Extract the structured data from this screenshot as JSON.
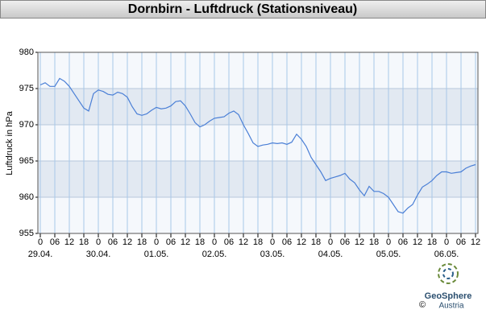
{
  "chart_data": {
    "type": "line",
    "title": "Dornbirn - Luftdruck (Stationsniveau)",
    "y_label": "Luftdruck in hPa",
    "x": [
      "29.04. 00",
      "29.04. 02",
      "29.04. 04",
      "29.04. 06",
      "29.04. 08",
      "29.04. 10",
      "29.04. 12",
      "29.04. 14",
      "29.04. 16",
      "29.04. 18",
      "29.04. 20",
      "29.04. 22",
      "30.04. 00",
      "30.04. 02",
      "30.04. 04",
      "30.04. 06",
      "30.04. 08",
      "30.04. 10",
      "30.04. 12",
      "30.04. 14",
      "30.04. 16",
      "30.04. 18",
      "30.04. 20",
      "30.04. 22",
      "01.05. 00",
      "01.05. 02",
      "01.05. 04",
      "01.05. 06",
      "01.05. 08",
      "01.05. 10",
      "01.05. 12",
      "01.05. 14",
      "01.05. 16",
      "01.05. 18",
      "01.05. 20",
      "01.05. 22",
      "02.05. 00",
      "02.05. 02",
      "02.05. 04",
      "02.05. 06",
      "02.05. 08",
      "02.05. 10",
      "02.05. 12",
      "02.05. 14",
      "02.05. 16",
      "02.05. 18",
      "02.05. 20",
      "02.05. 22",
      "03.05. 00",
      "03.05. 02",
      "03.05. 04",
      "03.05. 06",
      "03.05. 08",
      "03.05. 10",
      "03.05. 12",
      "03.05. 14",
      "03.05. 16",
      "03.05. 18",
      "03.05. 20",
      "03.05. 22",
      "04.05. 00",
      "04.05. 02",
      "04.05. 04",
      "04.05. 06",
      "04.05. 08",
      "04.05. 10",
      "04.05. 12",
      "04.05. 14",
      "04.05. 16",
      "04.05. 18",
      "04.05. 20",
      "04.05. 22",
      "05.05. 00",
      "05.05. 02",
      "05.05. 04",
      "05.05. 06",
      "05.05. 08",
      "05.05. 10",
      "05.05. 12",
      "05.05. 14",
      "05.05. 16",
      "05.05. 18",
      "05.05. 20",
      "05.05. 22",
      "06.05. 00",
      "06.05. 02",
      "06.05. 04",
      "06.05. 06",
      "06.05. 08",
      "06.05. 10",
      "06.05. 12"
    ],
    "series": [
      {
        "name": "Luftdruck",
        "color": "#4a7fd6",
        "values": [
          975.5,
          975.8,
          975.3,
          975.3,
          976.4,
          976.0,
          975.3,
          974.3,
          973.3,
          972.3,
          971.9,
          974.3,
          974.8,
          974.6,
          974.2,
          974.1,
          974.5,
          974.3,
          973.8,
          972.5,
          971.5,
          971.3,
          971.5,
          972.0,
          972.4,
          972.2,
          972.3,
          972.6,
          973.2,
          973.3,
          972.6,
          971.5,
          970.3,
          969.7,
          970.0,
          970.5,
          970.9,
          971.0,
          971.1,
          971.6,
          971.9,
          971.4,
          970.0,
          968.8,
          967.5,
          967.0,
          967.2,
          967.3,
          967.5,
          967.4,
          967.5,
          967.3,
          967.6,
          968.7,
          968.0,
          967.0,
          965.5,
          964.5,
          963.5,
          962.3,
          962.6,
          962.8,
          963.0,
          963.3,
          962.5,
          962.0,
          961.0,
          960.2,
          961.5,
          960.8,
          960.8,
          960.5,
          960.0,
          959.0,
          958.0,
          957.8,
          958.5,
          959.0,
          960.3,
          961.4,
          961.8,
          962.3,
          963.0,
          963.5,
          963.5,
          963.3,
          963.4,
          963.5,
          964.0,
          964.3,
          964.5
        ]
      }
    ],
    "xticks": [
      {
        "value": "29.04. 00",
        "label": "0"
      },
      {
        "value": "29.04. 06",
        "label": "06"
      },
      {
        "value": "29.04. 12",
        "label": "12"
      },
      {
        "value": "29.04. 18",
        "label": "18"
      },
      {
        "value": "30.04. 00",
        "label": "0"
      },
      {
        "value": "30.04. 06",
        "label": "06"
      },
      {
        "value": "30.04. 12",
        "label": "12"
      },
      {
        "value": "30.04. 18",
        "label": "18"
      },
      {
        "value": "01.05. 00",
        "label": "0"
      },
      {
        "value": "01.05. 06",
        "label": "06"
      },
      {
        "value": "01.05. 12",
        "label": "12"
      },
      {
        "value": "01.05. 18",
        "label": "18"
      },
      {
        "value": "02.05. 00",
        "label": "0"
      },
      {
        "value": "02.05. 06",
        "label": "06"
      },
      {
        "value": "02.05. 12",
        "label": "12"
      },
      {
        "value": "02.05. 18",
        "label": "18"
      },
      {
        "value": "03.05. 00",
        "label": "0"
      },
      {
        "value": "03.05. 06",
        "label": "06"
      },
      {
        "value": "03.05. 12",
        "label": "12"
      },
      {
        "value": "03.05. 18",
        "label": "18"
      },
      {
        "value": "04.05. 00",
        "label": "0"
      },
      {
        "value": "04.05. 06",
        "label": "06"
      },
      {
        "value": "04.05. 12",
        "label": "12"
      },
      {
        "value": "04.05. 18",
        "label": "18"
      },
      {
        "value": "05.05. 00",
        "label": "0"
      },
      {
        "value": "05.05. 06",
        "label": "06"
      },
      {
        "value": "05.05. 12",
        "label": "12"
      },
      {
        "value": "05.05. 18",
        "label": "18"
      },
      {
        "value": "06.05. 00",
        "label": "0"
      },
      {
        "value": "06.05. 06",
        "label": "06"
      },
      {
        "value": "06.05. 12",
        "label": "12"
      }
    ],
    "day_labels": [
      {
        "value": "29.04. 00",
        "label": "29.04."
      },
      {
        "value": "30.04. 00",
        "label": "30.04."
      },
      {
        "value": "01.05. 00",
        "label": "01.05."
      },
      {
        "value": "02.05. 00",
        "label": "02.05."
      },
      {
        "value": "03.05. 00",
        "label": "03.05."
      },
      {
        "value": "04.05. 00",
        "label": "04.05."
      },
      {
        "value": "05.05. 00",
        "label": "05.05."
      },
      {
        "value": "06.05. 00",
        "label": "06.05."
      }
    ],
    "ylim": [
      955,
      980
    ],
    "yticks": [
      955,
      960,
      965,
      970,
      975,
      980
    ],
    "grid": true,
    "logo": {
      "name": "GeoSphere",
      "sub": "Austria",
      "copyright": "©"
    }
  }
}
